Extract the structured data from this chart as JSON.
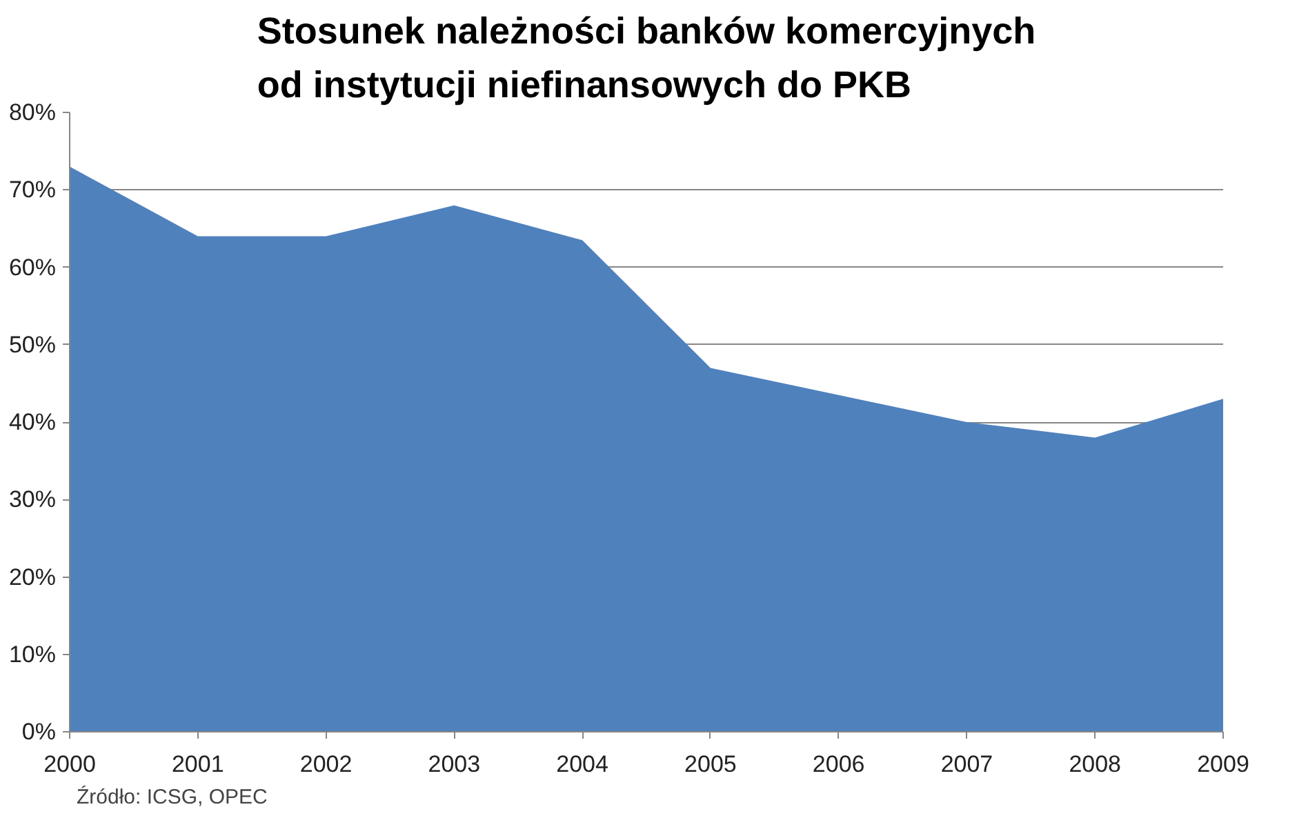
{
  "chart_data": {
    "type": "area",
    "title": "Stosunek należności banków komercyjnych od instytucji niefinansowych do PKB",
    "categories": [
      "2000",
      "2001",
      "2002",
      "2003",
      "2004",
      "2005",
      "2006",
      "2007",
      "2008",
      "2009"
    ],
    "series": [
      {
        "color": "#4f81bd",
        "values": [
          73,
          64,
          64,
          68,
          63.5,
          47,
          43.5,
          40,
          38,
          43
        ]
      }
    ],
    "ylim": [
      0,
      80
    ],
    "yticks": [
      {
        "value": 0,
        "label": "0%"
      },
      {
        "value": 10,
        "label": "10%"
      },
      {
        "value": 20,
        "label": "20%"
      },
      {
        "value": 30,
        "label": "30%"
      },
      {
        "value": 40,
        "label": "40%"
      },
      {
        "value": 50,
        "label": "50%"
      },
      {
        "value": 60,
        "label": "60%"
      },
      {
        "value": 70,
        "label": "70%"
      },
      {
        "value": 80,
        "label": "80%"
      }
    ],
    "grid": "y",
    "annotations": [
      "Źródło: ICSG, OPEC"
    ]
  }
}
